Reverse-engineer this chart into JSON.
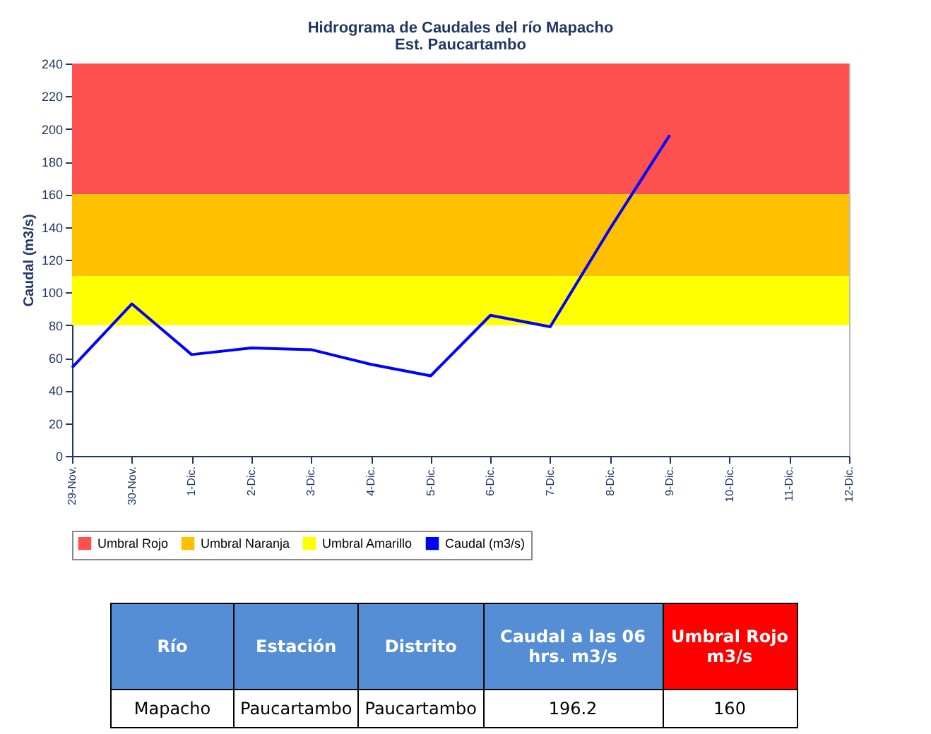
{
  "chart_data": {
    "type": "line",
    "title": "Hidrograma de Caudales del río Mapacho",
    "subtitle": "Est. Paucartambo",
    "ylabel": "Caudal (m3/s)",
    "categories": [
      "29-Nov.",
      "30-Nov.",
      "1-Dic.",
      "2-Dic.",
      "3-Dic.",
      "4-Dic.",
      "5-Dic.",
      "6-Dic.",
      "7-Dic.",
      "8-Dic.",
      "9-Dic.",
      "10-Dic.",
      "11-Dic.",
      "12-Dic."
    ],
    "series": [
      {
        "name": "Caudal (m3/s)",
        "color": "#0000ff",
        "values": [
          54,
          93,
          62,
          66,
          65,
          56,
          49,
          86,
          79,
          139,
          196.2,
          null,
          null,
          null
        ]
      }
    ],
    "bands": [
      {
        "axis": "y",
        "from": 160,
        "to": 240,
        "label": "Umbral Rojo",
        "color": "#ff5050"
      },
      {
        "axis": "y",
        "from": 110,
        "to": 160,
        "label": "Umbral Naranja",
        "color": "#ffc000"
      },
      {
        "axis": "y",
        "from": 80,
        "to": 110,
        "label": "Umbral Amarillo",
        "color": "#ffff00"
      }
    ],
    "ylim": [
      0,
      240
    ],
    "yticks": [
      0,
      20,
      40,
      60,
      80,
      100,
      120,
      140,
      160,
      180,
      200,
      220,
      240
    ],
    "grid": false,
    "legend": "bottom",
    "marker": "none",
    "line_style": "solid",
    "annotations": [
      "Río",
      "Estación",
      "Distrito",
      "Caudal a las 06 hrs. m3/s",
      "Umbral Rojo m3/s",
      "Mapacho",
      "Paucartambo",
      "Paucartambo",
      "196.2",
      "160"
    ]
  }
}
